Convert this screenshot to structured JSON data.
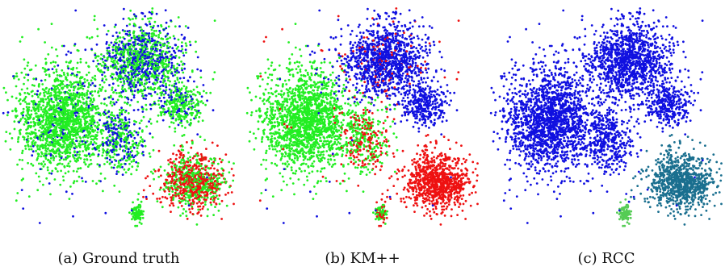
{
  "figure": {
    "captions": [
      "(a) Ground truth",
      "(b) KM++",
      "(c) RCC"
    ]
  },
  "colors": {
    "green": "#22ee22",
    "blue": "#1010e0",
    "red": "#ee1111",
    "teal": "#1a6f8f",
    "lightgreen": "#55cc55"
  },
  "chart_data": [
    {
      "type": "scatter",
      "title": "(a) Ground truth",
      "xlabel": "",
      "ylabel": "",
      "axes_visible": false,
      "series": [
        {
          "color": "green",
          "description_points": "majority of the embedding: left blob, upper-middle blob, lower-right blob mixed with red"
        },
        {
          "color": "blue",
          "description_points": "scattered throughout the upper-middle region and mixed into the left blob"
        },
        {
          "color": "red",
          "description_points": "lower-right cluster and small patch at right edge"
        }
      ]
    },
    {
      "type": "scatter",
      "title": "(b) KM++",
      "xlabel": "",
      "ylabel": "",
      "axes_visible": false,
      "series": [
        {
          "color": "blue",
          "description_points": "upper region"
        },
        {
          "color": "green",
          "description_points": "left blob"
        },
        {
          "color": "red",
          "description_points": "lower-right cluster"
        }
      ]
    },
    {
      "type": "scatter",
      "title": "(c) RCC",
      "xlabel": "",
      "ylabel": "",
      "axes_visible": false,
      "series": [
        {
          "color": "blue",
          "description_points": "almost entire embedding"
        },
        {
          "color": "teal",
          "description_points": "lower-right cluster"
        },
        {
          "color": "lightgreen",
          "description_points": "small cluster at bottom"
        }
      ]
    }
  ]
}
